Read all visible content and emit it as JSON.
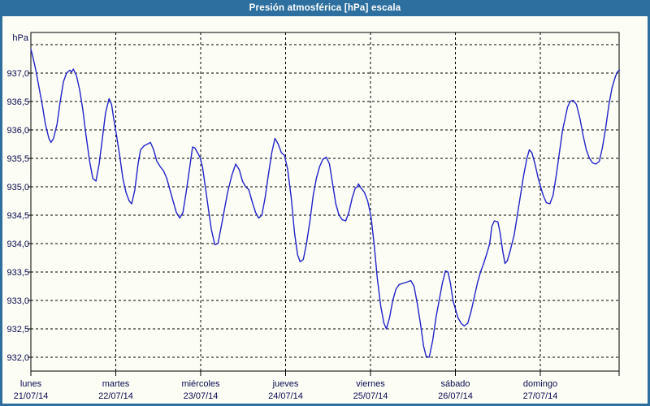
{
  "window": {
    "title": "Presión atmosférica [hPa] escala"
  },
  "colors": {
    "frame": "#2d6f9e",
    "titlebar_bg": "#2d6f9e",
    "title_text": "#ffffff",
    "background": "#fcfdf5",
    "plot_border": "#000000",
    "gridline": "#000000",
    "axis_text": "#0a0a50",
    "line": "#2323c8"
  },
  "y_axis": {
    "unit_label": "hPa",
    "tick_labels": [
      "937,0",
      "936,5",
      "936,0",
      "935,5",
      "935,0",
      "934,5",
      "934,0",
      "933,5",
      "933,0",
      "932,5",
      "932,0"
    ],
    "tick_values": [
      937.0,
      936.5,
      936.0,
      935.5,
      935.0,
      934.5,
      934.0,
      933.5,
      933.0,
      932.5,
      932.0
    ],
    "unlabeled_top_gridline": 937.5
  },
  "x_axis": {
    "days": [
      {
        "name": "lunes",
        "date": "21/07/14"
      },
      {
        "name": "martes",
        "date": "22/07/14"
      },
      {
        "name": "miércoles",
        "date": "23/07/14"
      },
      {
        "name": "jueves",
        "date": "24/07/14"
      },
      {
        "name": "viernes",
        "date": "25/07/14"
      },
      {
        "name": "sábado",
        "date": "26/07/14"
      },
      {
        "name": "domingo",
        "date": "27/07/14"
      }
    ]
  },
  "chart_data": {
    "type": "line",
    "title": "Presión atmosférica [hPa] escala",
    "ylabel": "hPa",
    "series_name": "Presión atmosférica",
    "x_unit": "hours since 21/07/14 00:00",
    "x_range_hours": [
      0,
      166.4
    ],
    "hours_per_day": 24,
    "ylim": [
      931.8,
      937.7
    ],
    "y_gridline_step": 0.5,
    "grid": true,
    "line_color": "#2323c8",
    "points": [
      [
        0.0,
        937.42
      ],
      [
        0.7,
        937.25
      ],
      [
        1.4,
        937.05
      ],
      [
        2.3,
        936.75
      ],
      [
        3.2,
        936.45
      ],
      [
        4.1,
        936.1
      ],
      [
        5.1,
        935.85
      ],
      [
        5.7,
        935.78
      ],
      [
        6.4,
        935.85
      ],
      [
        7.4,
        936.1
      ],
      [
        8.3,
        936.5
      ],
      [
        9.2,
        936.85
      ],
      [
        10.1,
        937.0
      ],
      [
        11.0,
        937.05
      ],
      [
        11.5,
        937.02
      ],
      [
        12.0,
        937.07
      ],
      [
        12.9,
        936.95
      ],
      [
        13.8,
        936.7
      ],
      [
        14.7,
        936.35
      ],
      [
        15.6,
        935.9
      ],
      [
        16.6,
        935.45
      ],
      [
        17.5,
        935.15
      ],
      [
        18.4,
        935.1
      ],
      [
        19.3,
        935.4
      ],
      [
        20.2,
        935.85
      ],
      [
        21.1,
        936.3
      ],
      [
        22.1,
        936.55
      ],
      [
        22.8,
        936.45
      ],
      [
        23.4,
        936.2
      ],
      [
        24.1,
        935.95
      ],
      [
        25.1,
        935.55
      ],
      [
        26.0,
        935.15
      ],
      [
        26.9,
        934.9
      ],
      [
        27.8,
        934.75
      ],
      [
        28.5,
        934.7
      ],
      [
        29.4,
        934.95
      ],
      [
        30.3,
        935.4
      ],
      [
        31.0,
        935.65
      ],
      [
        32.0,
        935.72
      ],
      [
        32.9,
        935.75
      ],
      [
        33.8,
        935.78
      ],
      [
        34.7,
        935.65
      ],
      [
        35.6,
        935.45
      ],
      [
        36.6,
        935.35
      ],
      [
        37.5,
        935.28
      ],
      [
        38.4,
        935.15
      ],
      [
        39.3,
        934.95
      ],
      [
        40.2,
        934.75
      ],
      [
        41.1,
        934.55
      ],
      [
        42.1,
        934.45
      ],
      [
        43.0,
        934.55
      ],
      [
        43.9,
        934.9
      ],
      [
        44.8,
        935.3
      ],
      [
        45.7,
        935.7
      ],
      [
        46.4,
        935.68
      ],
      [
        47.1,
        935.6
      ],
      [
        47.8,
        935.52
      ],
      [
        48.5,
        935.35
      ],
      [
        49.2,
        935.05
      ],
      [
        50.1,
        934.65
      ],
      [
        51.0,
        934.25
      ],
      [
        52.0,
        933.98
      ],
      [
        52.9,
        934.0
      ],
      [
        53.8,
        934.3
      ],
      [
        54.7,
        934.6
      ],
      [
        55.6,
        934.9
      ],
      [
        56.8,
        935.2
      ],
      [
        57.9,
        935.4
      ],
      [
        58.9,
        935.3
      ],
      [
        59.8,
        935.1
      ],
      [
        60.7,
        935.0
      ],
      [
        61.6,
        934.95
      ],
      [
        62.5,
        934.75
      ],
      [
        63.5,
        934.55
      ],
      [
        64.4,
        934.45
      ],
      [
        65.3,
        934.5
      ],
      [
        66.2,
        934.8
      ],
      [
        67.1,
        935.2
      ],
      [
        68.1,
        935.6
      ],
      [
        69.0,
        935.85
      ],
      [
        69.9,
        935.75
      ],
      [
        70.8,
        935.6
      ],
      [
        71.7,
        935.55
      ],
      [
        72.6,
        935.3
      ],
      [
        73.6,
        934.8
      ],
      [
        74.5,
        934.2
      ],
      [
        75.4,
        933.8
      ],
      [
        76.1,
        933.68
      ],
      [
        77.0,
        933.72
      ],
      [
        77.9,
        934.0
      ],
      [
        78.9,
        934.4
      ],
      [
        79.8,
        934.85
      ],
      [
        80.7,
        935.15
      ],
      [
        81.6,
        935.35
      ],
      [
        82.5,
        935.48
      ],
      [
        83.5,
        935.52
      ],
      [
        84.4,
        935.4
      ],
      [
        85.3,
        935.05
      ],
      [
        86.2,
        934.7
      ],
      [
        87.1,
        934.5
      ],
      [
        88.0,
        934.42
      ],
      [
        89.0,
        934.4
      ],
      [
        89.9,
        934.55
      ],
      [
        90.8,
        934.8
      ],
      [
        91.7,
        934.98
      ],
      [
        92.3,
        935.0
      ],
      [
        92.6,
        935.05
      ],
      [
        93.3,
        934.98
      ],
      [
        94.3,
        934.9
      ],
      [
        95.2,
        934.75
      ],
      [
        96.1,
        934.5
      ],
      [
        97.0,
        934.0
      ],
      [
        97.9,
        933.4
      ],
      [
        98.9,
        932.9
      ],
      [
        99.8,
        932.6
      ],
      [
        100.5,
        932.5
      ],
      [
        101.4,
        932.7
      ],
      [
        102.3,
        933.0
      ],
      [
        103.2,
        933.2
      ],
      [
        104.1,
        933.28
      ],
      [
        105.1,
        933.3
      ],
      [
        106.2,
        933.32
      ],
      [
        107.4,
        933.35
      ],
      [
        108.3,
        933.25
      ],
      [
        109.2,
        932.95
      ],
      [
        110.1,
        932.6
      ],
      [
        111.0,
        932.2
      ],
      [
        111.7,
        932.02
      ],
      [
        112.6,
        932.0
      ],
      [
        113.6,
        932.3
      ],
      [
        114.5,
        932.7
      ],
      [
        115.4,
        933.0
      ],
      [
        116.3,
        933.3
      ],
      [
        117.2,
        933.52
      ],
      [
        117.9,
        933.5
      ],
      [
        118.6,
        933.3
      ],
      [
        119.3,
        933.0
      ],
      [
        120.0,
        932.85
      ],
      [
        120.7,
        932.7
      ],
      [
        121.6,
        932.6
      ],
      [
        122.5,
        932.55
      ],
      [
        123.5,
        932.6
      ],
      [
        124.4,
        932.8
      ],
      [
        125.3,
        933.05
      ],
      [
        126.2,
        933.3
      ],
      [
        127.1,
        933.5
      ],
      [
        128.0,
        933.65
      ],
      [
        129.0,
        933.85
      ],
      [
        129.7,
        934.0
      ],
      [
        130.3,
        934.3
      ],
      [
        131.0,
        934.4
      ],
      [
        132.0,
        934.38
      ],
      [
        132.6,
        934.2
      ],
      [
        133.3,
        933.9
      ],
      [
        134.0,
        933.65
      ],
      [
        134.7,
        933.7
      ],
      [
        135.6,
        933.9
      ],
      [
        136.6,
        934.15
      ],
      [
        137.5,
        934.5
      ],
      [
        138.4,
        934.85
      ],
      [
        139.3,
        935.2
      ],
      [
        140.2,
        935.5
      ],
      [
        140.9,
        935.65
      ],
      [
        141.6,
        935.6
      ],
      [
        142.5,
        935.4
      ],
      [
        143.4,
        935.15
      ],
      [
        144.1,
        935.0
      ],
      [
        144.8,
        934.85
      ],
      [
        145.7,
        934.72
      ],
      [
        146.7,
        934.7
      ],
      [
        147.6,
        934.85
      ],
      [
        148.5,
        935.2
      ],
      [
        149.4,
        935.6
      ],
      [
        150.3,
        936.0
      ],
      [
        151.0,
        936.2
      ],
      [
        151.7,
        936.4
      ],
      [
        152.4,
        936.5
      ],
      [
        153.3,
        936.52
      ],
      [
        154.2,
        936.45
      ],
      [
        155.2,
        936.2
      ],
      [
        156.1,
        935.9
      ],
      [
        157.0,
        935.65
      ],
      [
        157.9,
        935.5
      ],
      [
        158.8,
        935.42
      ],
      [
        159.7,
        935.4
      ],
      [
        160.7,
        935.45
      ],
      [
        161.6,
        935.7
      ],
      [
        162.5,
        936.05
      ],
      [
        163.4,
        936.45
      ],
      [
        164.3,
        936.75
      ],
      [
        165.3,
        936.95
      ],
      [
        165.9,
        937.03
      ],
      [
        166.4,
        937.05
      ]
    ]
  }
}
